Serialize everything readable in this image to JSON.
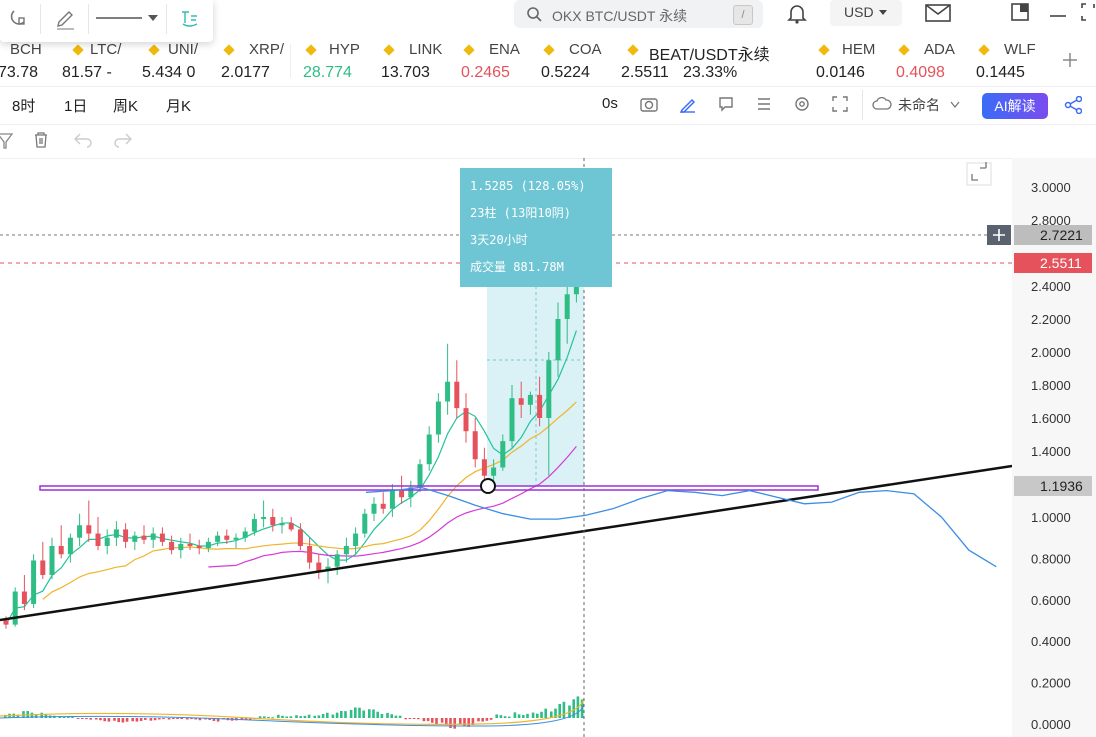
{
  "search": {
    "placeholder": "OKX BTC/USDT 永续",
    "shortcut": "/"
  },
  "currency": "USD",
  "tickers": [
    {
      "name": "BCH",
      "price": "73.78",
      "color": "#222222"
    },
    {
      "name": "LTC/",
      "price": "81.57 -",
      "color": "#222222"
    },
    {
      "name": "UNI/",
      "price": "5.434 0",
      "color": "#222222"
    },
    {
      "name": "XRP/",
      "price": "2.0177",
      "color": "#222222"
    },
    {
      "name": "HYP",
      "price": "28.774",
      "color": "#2ebd85"
    },
    {
      "name": "LINK",
      "price": "13.703",
      "color": "#222222"
    },
    {
      "name": "ENA",
      "price": "0.2465",
      "color": "#e5525b"
    },
    {
      "name": "COA",
      "price": "0.5224",
      "color": "#222222"
    },
    {
      "name": "BEAT/USDT永续",
      "price": "2.5511",
      "change": "23.33%",
      "color": "#222222"
    },
    {
      "name": "HEM",
      "price": "0.0146",
      "color": "#222222"
    },
    {
      "name": "ADA",
      "price": "0.4098",
      "color": "#e5525b"
    },
    {
      "name": "WLF",
      "price": "0.1445",
      "color": "#222222"
    }
  ],
  "timeframes": [
    "8时",
    "1日",
    "周K",
    "月K"
  ],
  "toolbar": {
    "countdown": "0s",
    "layout_name": "未命名",
    "ai_button": "AI解读"
  },
  "measure": {
    "line1": "1.5285 (128.05%)",
    "line2": "23柱 (13阳10阴)",
    "line3": "3天20小时",
    "line4": "成交量 881.78M"
  },
  "price_axis": {
    "ticks": [
      "3.0000",
      "2.8000",
      "2.4000",
      "2.2000",
      "2.0000",
      "1.8000",
      "1.6000",
      "1.4000",
      "1.0000",
      "0.8000",
      "0.6000",
      "0.4000",
      "0.2000",
      "0.0000"
    ],
    "labels": [
      {
        "value": "2.7221",
        "kind": "cursor"
      },
      {
        "value": "2.5511",
        "kind": "last"
      },
      {
        "value": "1.1936",
        "kind": "line"
      }
    ]
  },
  "colors": {
    "up": "#2ebd85",
    "down": "#e5525b",
    "ma_short": "#22c39b",
    "ma_mid": "#f0b429",
    "ma_long": "#d63ad8",
    "projection": "#3a8ee6",
    "measure_box": "#6ec6d4",
    "horizontal_line": "#9b30d9",
    "accent": "#3b6cf6"
  },
  "chart_data": {
    "type": "candlestick",
    "symbol": "BEAT/USDT永续",
    "last_price": 2.5511,
    "ylim": [
      0.0,
      3.05
    ],
    "horizontal_level": 1.1936,
    "cursor_price": 2.7221,
    "measure_range": {
      "from": 1.1936,
      "to": 2.7221,
      "change": 1.5285,
      "change_pct": 128.05,
      "bars": 23,
      "up_bars": 13,
      "down_bars": 10,
      "duration": "3天20小时",
      "volume": "881.78M"
    },
    "candles": [
      [
        0.5,
        0.52,
        0.46,
        0.48
      ],
      [
        0.48,
        0.66,
        0.47,
        0.64
      ],
      [
        0.64,
        0.72,
        0.55,
        0.58
      ],
      [
        0.58,
        0.82,
        0.56,
        0.79
      ],
      [
        0.79,
        0.88,
        0.7,
        0.72
      ],
      [
        0.72,
        0.9,
        0.7,
        0.86
      ],
      [
        0.86,
        0.96,
        0.8,
        0.82
      ],
      [
        0.82,
        0.92,
        0.78,
        0.9
      ],
      [
        0.9,
        1.02,
        0.86,
        0.96
      ],
      [
        0.96,
        1.1,
        0.88,
        0.92
      ],
      [
        0.92,
        1.0,
        0.84,
        0.86
      ],
      [
        0.86,
        0.94,
        0.82,
        0.9
      ],
      [
        0.9,
        0.98,
        0.86,
        0.94
      ],
      [
        0.94,
        0.97,
        0.85,
        0.88
      ],
      [
        0.88,
        0.93,
        0.84,
        0.91
      ],
      [
        0.91,
        0.96,
        0.87,
        0.89
      ],
      [
        0.89,
        0.95,
        0.85,
        0.92
      ],
      [
        0.92,
        0.95,
        0.86,
        0.88
      ],
      [
        0.88,
        0.91,
        0.82,
        0.84
      ],
      [
        0.84,
        0.9,
        0.8,
        0.87
      ],
      [
        0.87,
        0.92,
        0.84,
        0.86
      ],
      [
        0.86,
        0.89,
        0.82,
        0.85
      ],
      [
        0.85,
        0.9,
        0.83,
        0.88
      ],
      [
        0.88,
        0.93,
        0.86,
        0.91
      ],
      [
        0.91,
        0.94,
        0.87,
        0.89
      ],
      [
        0.89,
        0.92,
        0.85,
        0.9
      ],
      [
        0.9,
        0.95,
        0.88,
        0.93
      ],
      [
        0.93,
        1.02,
        0.91,
        0.99
      ],
      [
        0.99,
        1.1,
        0.95,
        1.0
      ],
      [
        1.0,
        1.05,
        0.93,
        0.96
      ],
      [
        0.96,
        1.0,
        0.92,
        0.97
      ],
      [
        0.97,
        1.0,
        0.93,
        0.94
      ],
      [
        0.94,
        0.97,
        0.84,
        0.86
      ],
      [
        0.86,
        0.9,
        0.75,
        0.78
      ],
      [
        0.78,
        0.82,
        0.7,
        0.74
      ],
      [
        0.74,
        0.8,
        0.68,
        0.76
      ],
      [
        0.76,
        0.84,
        0.72,
        0.82
      ],
      [
        0.82,
        0.9,
        0.78,
        0.86
      ],
      [
        0.86,
        0.95,
        0.82,
        0.92
      ],
      [
        0.92,
        1.05,
        0.9,
        1.02
      ],
      [
        1.02,
        1.12,
        0.98,
        1.08
      ],
      [
        1.08,
        1.15,
        1.02,
        1.05
      ],
      [
        1.05,
        1.2,
        1.0,
        1.16
      ],
      [
        1.16,
        1.25,
        1.08,
        1.12
      ],
      [
        1.12,
        1.22,
        1.06,
        1.18
      ],
      [
        1.18,
        1.35,
        1.15,
        1.32
      ],
      [
        1.32,
        1.55,
        1.28,
        1.5
      ],
      [
        1.5,
        1.75,
        1.45,
        1.7
      ],
      [
        1.7,
        2.05,
        1.62,
        1.82
      ],
      [
        1.82,
        1.95,
        1.6,
        1.66
      ],
      [
        1.66,
        1.75,
        1.45,
        1.52
      ],
      [
        1.52,
        1.6,
        1.3,
        1.35
      ],
      [
        1.35,
        1.42,
        1.19,
        1.25
      ],
      [
        1.25,
        1.35,
        1.22,
        1.3
      ],
      [
        1.3,
        1.5,
        1.28,
        1.46
      ],
      [
        1.46,
        1.8,
        1.42,
        1.72
      ],
      [
        1.72,
        1.82,
        1.6,
        1.68
      ],
      [
        1.68,
        1.76,
        1.62,
        1.74
      ],
      [
        1.74,
        1.85,
        1.55,
        1.6
      ],
      [
        1.6,
        2.0,
        1.25,
        1.95
      ],
      [
        1.95,
        2.3,
        1.85,
        2.2
      ],
      [
        2.2,
        2.45,
        2.05,
        2.35
      ],
      [
        2.35,
        2.75,
        2.3,
        2.55
      ]
    ],
    "projection_curve": [
      1.15,
      1.16,
      1.18,
      1.13,
      1.07,
      1.02,
      0.99,
      0.99,
      1.01,
      1.05,
      1.11,
      1.16,
      1.15,
      1.13,
      1.16,
      1.12,
      1.08,
      1.09,
      1.15,
      1.16,
      1.14,
      1.0,
      0.84,
      0.76
    ],
    "macd_histogram": [
      0.05,
      0.08,
      0.06,
      0.03,
      -0.02,
      -0.04,
      -0.05,
      -0.04,
      -0.03,
      -0.02,
      -0.03,
      -0.04,
      -0.03,
      -0.02,
      0.02,
      0.04,
      0.05,
      0.06,
      0.08,
      0.12,
      0.1,
      0.06,
      -0.02,
      -0.08,
      -0.12,
      -0.1,
      -0.04,
      0.04,
      0.08,
      0.12,
      0.18,
      0.24
    ]
  }
}
